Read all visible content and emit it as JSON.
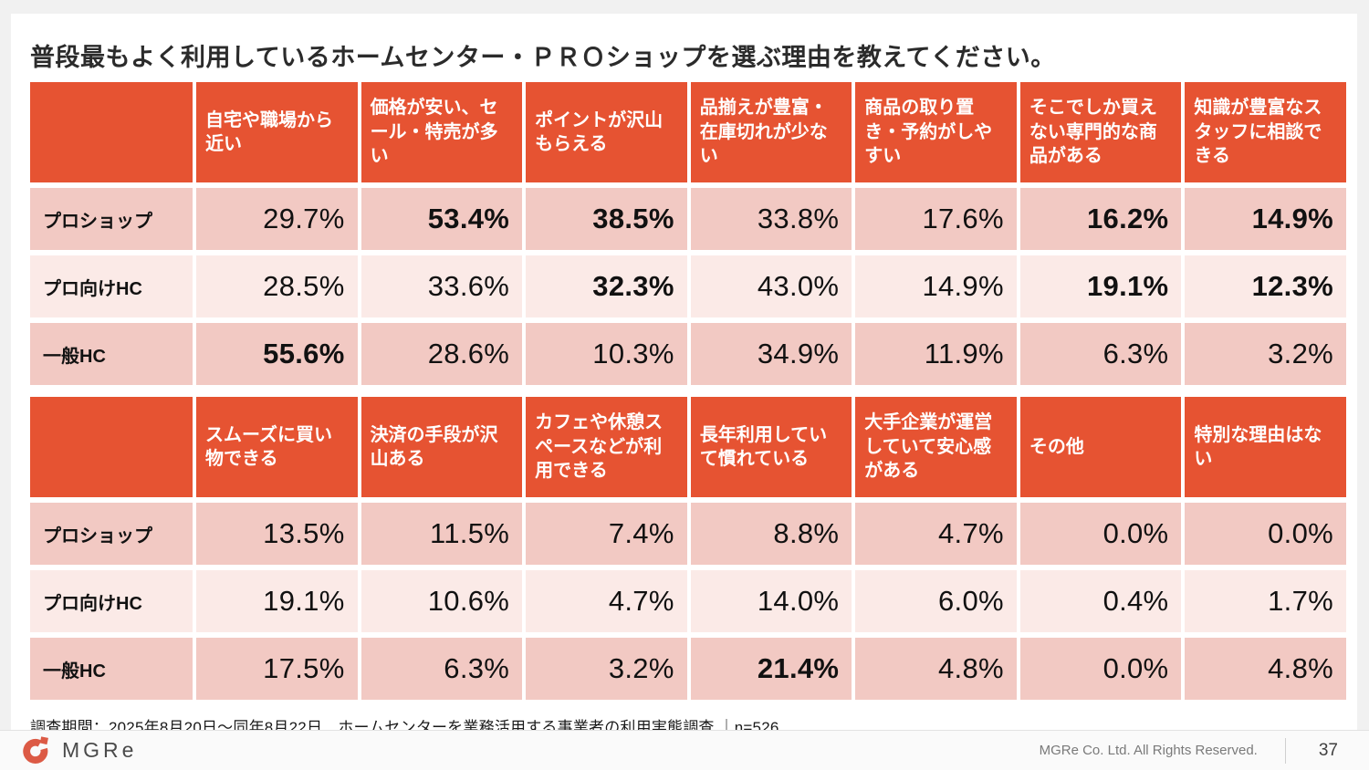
{
  "title": "普段最もよく利用しているホームセンター・ＰＲＯショップを選ぶ理由を教えてください。",
  "survey_note": "調査期間：2025年8月20日～同年8月22日　ホームセンターを業務活用する事業者の利用実態調査 ｜n=526",
  "footer_bar": {
    "logo_text": "MGRe",
    "copyright": "MGRe Co. Ltd. All Rights Reserved.",
    "page_number": "37"
  },
  "colors": {
    "header_red": "#E65332",
    "row_dark_pink": "#F2C9C3",
    "row_light_pink": "#FBEAE7",
    "page_background": "#F1F1F1",
    "footer_bar_background": "#FAFAFA",
    "logo_red": "#DC5A45"
  },
  "chart_data": {
    "type": "table",
    "title": "普段最もよく利用しているホームセンター・ＰＲＯショップを選ぶ理由を教えてください。",
    "row_labels": [
      "プロショップ",
      "プロ向けHC",
      "一般HC"
    ],
    "note": "bold=true marks values emphasized in the original table",
    "tables": [
      {
        "columns": [
          "自宅や職場から近い",
          "価格が安い、セール・特売が多い",
          "ポイントが沢山もらえる",
          "品揃えが豊富・在庫切れが少ない",
          "商品の取り置き・予約がしやすい",
          "そこでしか買えない専門的な商品がある",
          "知識が豊富なスタッフに相談できる"
        ],
        "rows": [
          {
            "label": "プロショップ",
            "values": [
              "29.7%",
              "53.4%",
              "38.5%",
              "33.8%",
              "17.6%",
              "16.2%",
              "14.9%"
            ],
            "bold": [
              false,
              true,
              true,
              false,
              false,
              true,
              true
            ]
          },
          {
            "label": "プロ向けHC",
            "values": [
              "28.5%",
              "33.6%",
              "32.3%",
              "43.0%",
              "14.9%",
              "19.1%",
              "12.3%"
            ],
            "bold": [
              false,
              false,
              true,
              false,
              false,
              true,
              true
            ]
          },
          {
            "label": "一般HC",
            "values": [
              "55.6%",
              "28.6%",
              "10.3%",
              "34.9%",
              "11.9%",
              "6.3%",
              "3.2%"
            ],
            "bold": [
              true,
              false,
              false,
              false,
              false,
              false,
              false
            ]
          }
        ]
      },
      {
        "columns": [
          "スムーズに買い物できる",
          "決済の手段が沢山ある",
          "カフェや休憩スペースなどが利用できる",
          "長年利用していて慣れている",
          "大手企業が運営していて安心感がある",
          "その他",
          "特別な理由はない"
        ],
        "rows": [
          {
            "label": "プロショップ",
            "values": [
              "13.5%",
              "11.5%",
              "7.4%",
              "8.8%",
              "4.7%",
              "0.0%",
              "0.0%"
            ],
            "bold": [
              false,
              false,
              false,
              false,
              false,
              false,
              false
            ]
          },
          {
            "label": "プロ向けHC",
            "values": [
              "19.1%",
              "10.6%",
              "4.7%",
              "14.0%",
              "6.0%",
              "0.4%",
              "1.7%"
            ],
            "bold": [
              false,
              false,
              false,
              false,
              false,
              false,
              false
            ]
          },
          {
            "label": "一般HC",
            "values": [
              "17.5%",
              "6.3%",
              "3.2%",
              "21.4%",
              "4.8%",
              "0.0%",
              "4.8%"
            ],
            "bold": [
              false,
              false,
              false,
              true,
              false,
              false,
              false
            ]
          }
        ]
      }
    ]
  }
}
